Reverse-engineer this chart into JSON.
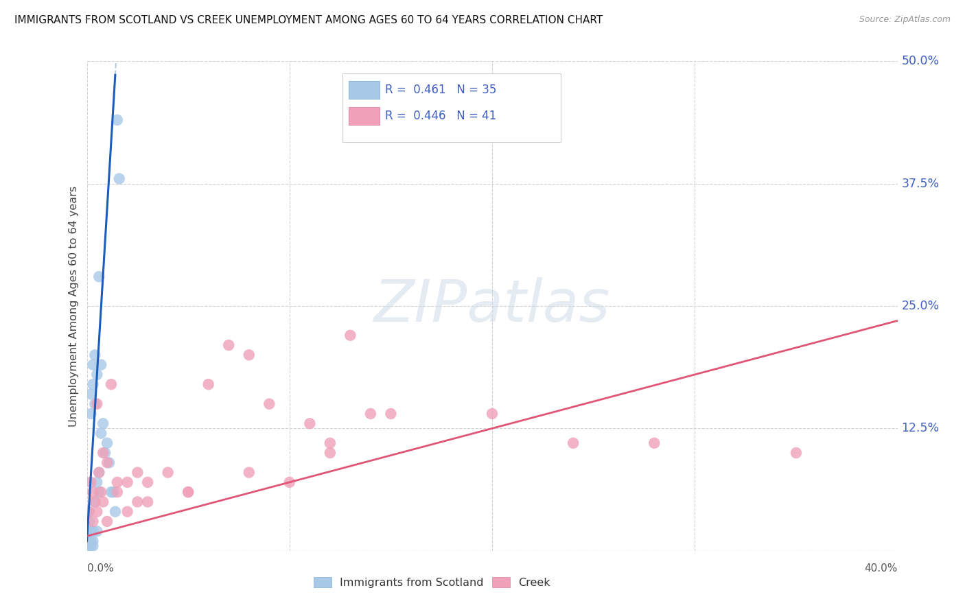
{
  "title": "IMMIGRANTS FROM SCOTLAND VS CREEK UNEMPLOYMENT AMONG AGES 60 TO 64 YEARS CORRELATION CHART",
  "source": "Source: ZipAtlas.com",
  "ylabel": "Unemployment Among Ages 60 to 64 years",
  "xlim": [
    0.0,
    0.4
  ],
  "ylim": [
    0.0,
    0.5
  ],
  "ytick_vals": [
    0.0,
    0.125,
    0.25,
    0.375,
    0.5
  ],
  "ytick_labels_right": [
    "",
    "12.5%",
    "25.0%",
    "37.5%",
    "50.0%"
  ],
  "xtick_vals": [
    0.0,
    0.1,
    0.2,
    0.3,
    0.4
  ],
  "legend_blue_r": "0.461",
  "legend_blue_n": "35",
  "legend_pink_r": "0.446",
  "legend_pink_n": "41",
  "legend_label_blue": "Immigrants from Scotland",
  "legend_label_pink": "Creek",
  "blue_scatter_color": "#a8c8e8",
  "pink_scatter_color": "#f0a0b8",
  "blue_line_color": "#1a5dbb",
  "pink_line_color": "#e05575",
  "dashed_line_color": "#b8c8d8",
  "grid_color": "#d0d0d0",
  "right_axis_color": "#4060c0",
  "watermark_color": "#d0dce8",
  "scotland_x": [
    0.001,
    0.001,
    0.001,
    0.002,
    0.002,
    0.002,
    0.003,
    0.003,
    0.003,
    0.004,
    0.004,
    0.005,
    0.005,
    0.005,
    0.006,
    0.006,
    0.007,
    0.007,
    0.008,
    0.009,
    0.01,
    0.011,
    0.012,
    0.013,
    0.014,
    0.015,
    0.016,
    0.001,
    0.002,
    0.003,
    0.004,
    0.006,
    0.001,
    0.002,
    0.003
  ],
  "scotland_y": [
    0.02,
    0.04,
    0.01,
    0.14,
    0.16,
    0.02,
    0.17,
    0.19,
    0.02,
    0.2,
    0.15,
    0.18,
    0.07,
    0.02,
    0.28,
    0.08,
    0.19,
    0.12,
    0.13,
    0.1,
    0.11,
    0.09,
    0.06,
    0.06,
    0.04,
    0.44,
    0.38,
    0.03,
    0.01,
    0.01,
    0.05,
    0.06,
    0.005,
    0.005,
    0.005
  ],
  "creek_x": [
    0.001,
    0.002,
    0.003,
    0.004,
    0.005,
    0.006,
    0.007,
    0.008,
    0.01,
    0.012,
    0.015,
    0.02,
    0.025,
    0.03,
    0.04,
    0.05,
    0.06,
    0.07,
    0.08,
    0.09,
    0.1,
    0.11,
    0.12,
    0.13,
    0.14,
    0.15,
    0.2,
    0.24,
    0.28,
    0.35,
    0.003,
    0.005,
    0.008,
    0.01,
    0.015,
    0.02,
    0.025,
    0.03,
    0.05,
    0.08,
    0.12
  ],
  "creek_y": [
    0.04,
    0.07,
    0.06,
    0.05,
    0.15,
    0.08,
    0.06,
    0.1,
    0.09,
    0.17,
    0.07,
    0.07,
    0.08,
    0.05,
    0.08,
    0.06,
    0.17,
    0.21,
    0.2,
    0.15,
    0.07,
    0.13,
    0.11,
    0.22,
    0.14,
    0.14,
    0.14,
    0.11,
    0.11,
    0.1,
    0.03,
    0.04,
    0.05,
    0.03,
    0.06,
    0.04,
    0.05,
    0.07,
    0.06,
    0.08,
    0.1
  ]
}
